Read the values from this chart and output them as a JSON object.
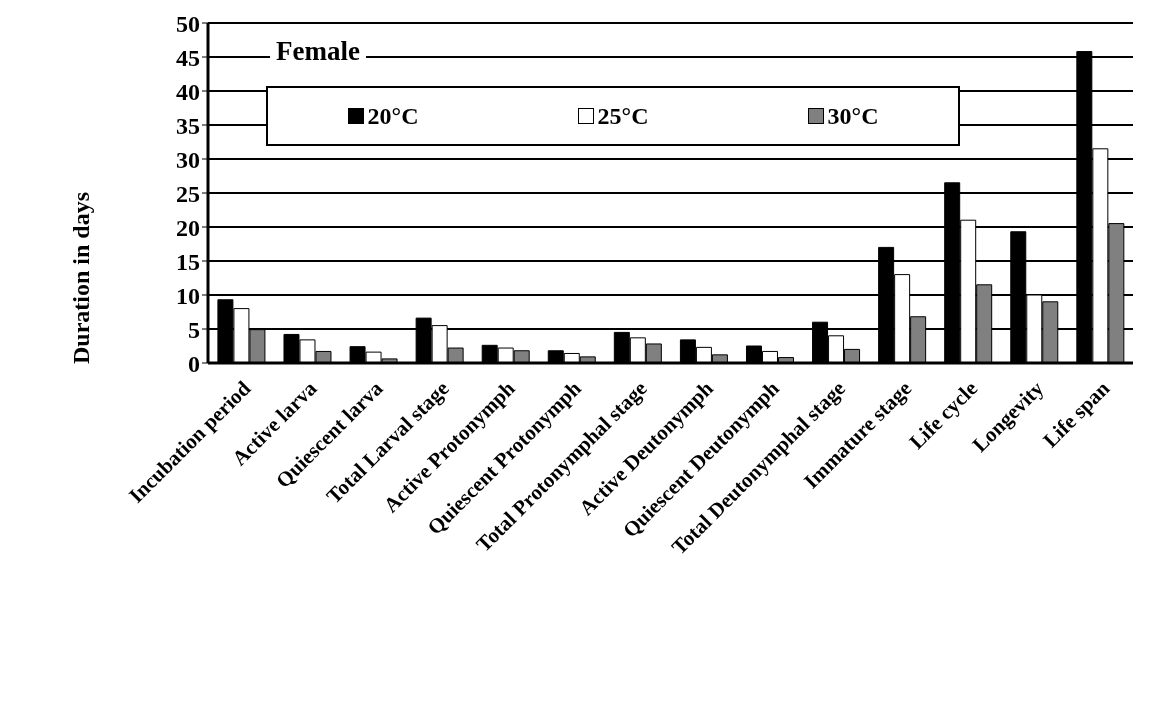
{
  "chart_data": {
    "type": "bar",
    "ylabel": "Duration in days",
    "annotations": [
      "Female"
    ],
    "categories": [
      "Incubation period",
      "Active larva",
      "Quiescent larva",
      "Total Larval stage",
      "Active Protonymph",
      "Quiescent Protonymph",
      "Total Protonymphal stage",
      "Active Deutonymph",
      "Quiescent Deutonymph",
      "Total Deutonymphal stage",
      "Immature stage",
      "Life cycle",
      "Longevity",
      "Life span"
    ],
    "series": [
      {
        "name": "20°C",
        "color": "#000000",
        "values": [
          9.3,
          4.2,
          2.4,
          6.6,
          2.6,
          1.8,
          4.5,
          3.4,
          2.5,
          6,
          17,
          26.5,
          19.3,
          45.8
        ]
      },
      {
        "name": "25°C",
        "color": "#ffffff",
        "values": [
          8,
          3.4,
          1.6,
          5.5,
          2.2,
          1.4,
          3.7,
          2.3,
          1.7,
          4,
          13,
          21,
          10,
          31.5
        ]
      },
      {
        "name": "30°C",
        "color": "#808080",
        "values": [
          4.9,
          1.7,
          0.6,
          2.2,
          1.8,
          0.9,
          2.8,
          1.2,
          0.8,
          2,
          6.8,
          11.5,
          9,
          20.5
        ]
      }
    ],
    "ylim": [
      0,
      50
    ],
    "yticks": [
      0,
      5,
      10,
      15,
      20,
      25,
      30,
      35,
      40,
      45,
      50
    ],
    "grid": "y",
    "legend": "top left"
  }
}
